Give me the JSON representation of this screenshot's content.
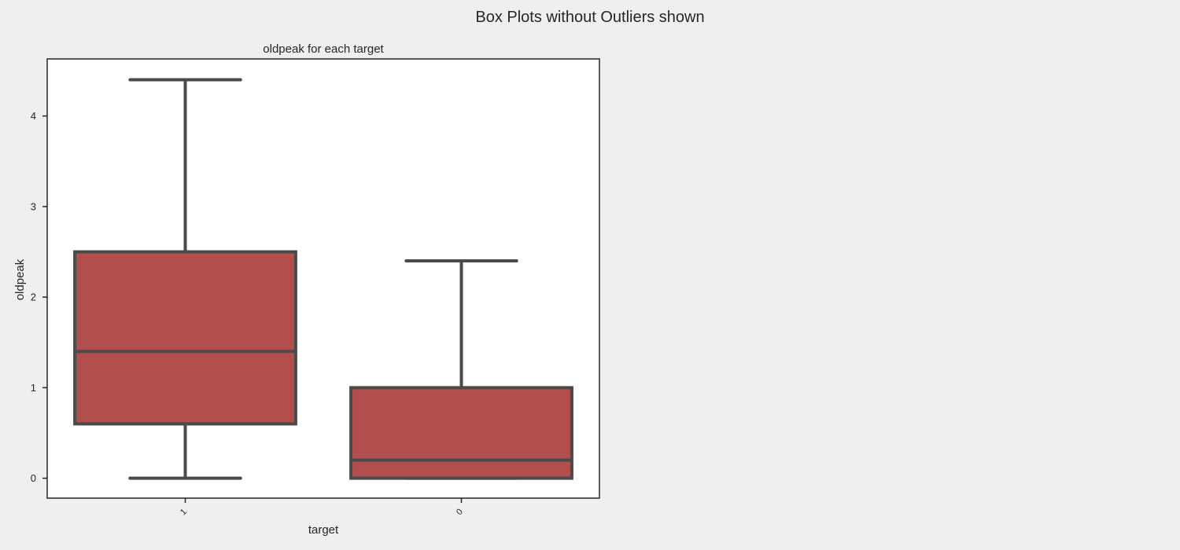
{
  "figure": {
    "suptitle": "Box Plots without Outliers shown"
  },
  "chart_data": {
    "type": "box",
    "title": "oldpeak for each target",
    "xlabel": "target",
    "ylabel": "oldpeak",
    "ylim": [
      -0.22,
      4.63
    ],
    "yticks": [
      0,
      1,
      2,
      3,
      4
    ],
    "categories": [
      "1",
      "0"
    ],
    "boxes": [
      {
        "category": "1",
        "whisker_low": 0.0,
        "q1": 0.6,
        "median": 1.4,
        "q3": 2.5,
        "whisker_high": 4.4
      },
      {
        "category": "0",
        "whisker_low": 0.0,
        "q1": 0.0,
        "median": 0.2,
        "q3": 1.0,
        "whisker_high": 2.4
      }
    ],
    "box_color": "#b24f4e",
    "line_color": "#4a4a4a",
    "plot_background": "#ffffff",
    "figure_background": "#efefef",
    "grid": false,
    "showfliers": false,
    "xtick_rotation": "45 degrees"
  }
}
